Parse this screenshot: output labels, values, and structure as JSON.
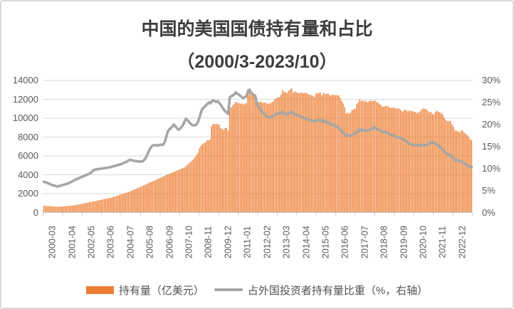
{
  "title": {
    "line1": "中国的美国国债持有量和占比",
    "line2": "（2000/3-2023/10）"
  },
  "legend": {
    "holdings_label": "持有量（亿美元）",
    "share_label": "占外国投资者持有量比重（%，右轴）"
  },
  "colors": {
    "bar": "#ED7D31",
    "line": "#A6A6A6",
    "gridline": "#D9D9D9",
    "axis_line": "#C6C6C6",
    "axis_text": "#595959",
    "title_text": "#3D3D3D"
  },
  "chart_data": {
    "type": "bar",
    "subtype": "combo-bar-line",
    "title": "中国的美国国债持有量和占比（2000/3-2023/10）",
    "x_first": "2000-03",
    "x_last": "2023-10",
    "x_tick_labels": [
      "2000-03",
      "2001-04",
      "2002-05",
      "2003-06",
      "2004-07",
      "2005-08",
      "2006-09",
      "2007-10",
      "2008-11",
      "2009-12",
      "2011-01",
      "2012-02",
      "2013-03",
      "2014-04",
      "2015-05",
      "2016-06",
      "2017-07",
      "2018-08",
      "2019-09",
      "2020-10",
      "2021-11",
      "2022-12"
    ],
    "left_axis": {
      "min": 0,
      "max": 14000,
      "step": 2000,
      "tick_labels": [
        "0",
        "2000",
        "4000",
        "6000",
        "8000",
        "10000",
        "12000",
        "14000"
      ]
    },
    "right_axis": {
      "min": 0,
      "max": 30,
      "step": 5,
      "tick_labels": [
        "0%",
        "5%",
        "10%",
        "15%",
        "20%",
        "25%",
        "30%"
      ]
    },
    "grid": true,
    "legend_position": "bottom",
    "series": [
      {
        "name": "持有量（亿美元）",
        "type": "bar",
        "axis": "left",
        "color": "#ED7D31",
        "values": [
          714,
          705,
          695,
          686,
          676,
          666,
          655,
          643,
          625,
          603,
          615,
          630,
          645,
          660,
          675,
          690,
          705,
          720,
          735,
          750,
          768,
          786,
          819,
          852,
          885,
          918,
          951,
          984,
          1017,
          1050,
          1083,
          1116,
          1150,
          1184,
          1218,
          1252,
          1286,
          1320,
          1354,
          1388,
          1422,
          1456,
          1490,
          1524,
          1557,
          1590,
          1643,
          1696,
          1749,
          1802,
          1855,
          1908,
          1961,
          2014,
          2067,
          2120,
          2175,
          2230,
          2302,
          2374,
          2446,
          2518,
          2590,
          2662,
          2734,
          2806,
          2878,
          2950,
          3025,
          3100,
          3172,
          3244,
          3316,
          3388,
          3460,
          3532,
          3604,
          3676,
          3748,
          3820,
          3895,
          3970,
          4037,
          4104,
          4171,
          4238,
          4305,
          4372,
          4439,
          4506,
          4573,
          4640,
          4708,
          4776,
          4900,
          5050,
          5200,
          5350,
          5500,
          5650,
          5870,
          6100,
          6350,
          6800,
          7100,
          7274,
          7396,
          7440,
          7680,
          7640,
          7760,
          9160,
          9400,
          9370,
          9380,
          9380,
          9300,
          8948,
          8890,
          8770,
          8950,
          9000,
          8677,
          11121,
          11150,
          11370,
          11510,
          11750,
          11640,
          11601,
          11550,
          11540,
          11450,
          11530,
          11600,
          13070,
          13149,
          12780,
          12700,
          12560,
          12550,
          11519,
          11660,
          11790,
          11700,
          11640,
          11640,
          11640,
          11500,
          11550,
          11560,
          11700,
          11830,
          12028,
          12140,
          12230,
          12230,
          12490,
          12970,
          12760,
          12770,
          12680,
          12940,
          13050,
          13167,
          12700,
          12840,
          12730,
          12720,
          12630,
          12710,
          12680,
          12650,
          12700,
          12660,
          12530,
          12500,
          12443,
          12390,
          12240,
          12610,
          12630,
          12700,
          12712,
          12410,
          12710,
          12580,
          12550,
          12650,
          12461,
          12380,
          12520,
          12450,
          12430,
          12440,
          12410,
          12190,
          11850,
          11570,
          11160,
          10490,
          10584,
          10510,
          10600,
          10880,
          10920,
          11020,
          11470,
          11660,
          12000,
          11810,
          11890,
          11770,
          11849,
          11680,
          11770,
          11880,
          11820,
          11830,
          11910,
          11710,
          11650,
          11510,
          11390,
          11210,
          11235,
          11270,
          11310,
          11210,
          11130,
          11100,
          11125,
          11100,
          11030,
          11020,
          11017,
          10890,
          10699,
          10790,
          10923,
          10816,
          10728,
          10843,
          10744,
          10734,
          10680,
          10618,
          10540,
          10630,
          10720,
          10950,
          11040,
          11000,
          10960,
          10780,
          10620,
          10680,
          10470,
          10380,
          10650,
          10810,
          10690,
          10600,
          10550,
          10390,
          10030,
          9810,
          9680,
          9700,
          9720,
          9330,
          9100,
          8700,
          8671,
          8594,
          8488,
          8693,
          8689,
          8467,
          8354,
          8218,
          8054,
          7781,
          7696
        ]
      },
      {
        "name": "占外国投资者持有量比重（%，右轴）",
        "type": "line",
        "axis": "right",
        "color": "#A6A6A6",
        "values": [
          7.0,
          6.9,
          6.8,
          6.6,
          6.5,
          6.3,
          6.2,
          6.1,
          6.0,
          5.9,
          6.0,
          6.1,
          6.2,
          6.3,
          6.4,
          6.5,
          6.6,
          6.8,
          6.9,
          7.1,
          7.3,
          7.5,
          7.6,
          7.8,
          7.9,
          8.1,
          8.2,
          8.4,
          8.5,
          8.7,
          8.8,
          9.0,
          9.3,
          9.7,
          9.7,
          9.8,
          9.9,
          9.9,
          10.0,
          10.0,
          10.1,
          10.1,
          10.2,
          10.2,
          10.3,
          10.4,
          10.5,
          10.6,
          10.7,
          10.8,
          10.9,
          11.0,
          11.1,
          11.3,
          11.4,
          11.6,
          11.8,
          12.0,
          11.9,
          11.8,
          11.7,
          11.7,
          11.6,
          11.6,
          11.6,
          11.6,
          11.8,
          12.2,
          12.8,
          13.6,
          14.3,
          14.9,
          15.2,
          15.3,
          15.3,
          15.2,
          15.3,
          15.4,
          15.4,
          15.4,
          16.0,
          17.2,
          18.4,
          18.9,
          19.2,
          19.5,
          20.0,
          19.6,
          19.2,
          18.8,
          19.0,
          19.4,
          19.8,
          20.6,
          21.3,
          21.0,
          20.6,
          20.2,
          19.9,
          19.8,
          19.8,
          20.0,
          20.6,
          21.6,
          22.8,
          23.6,
          23.9,
          24.2,
          24.6,
          25.0,
          24.8,
          25.2,
          25.5,
          25.3,
          25.1,
          25.3,
          24.9,
          24.5,
          24.0,
          23.4,
          23.0,
          22.7,
          22.4,
          26.2,
          26.4,
          26.6,
          26.8,
          27.3,
          27.0,
          26.8,
          26.5,
          26.2,
          26.0,
          26.2,
          26.4,
          27.5,
          27.9,
          27.3,
          27.0,
          26.6,
          26.4,
          24.5,
          24.0,
          23.5,
          23.0,
          22.6,
          22.3,
          22.0,
          21.7,
          21.6,
          21.6,
          21.8,
          22.0,
          22.3,
          22.4,
          22.5,
          22.4,
          22.6,
          22.9,
          22.5,
          22.4,
          22.2,
          22.5,
          22.7,
          23.0,
          22.4,
          22.4,
          22.2,
          22.1,
          21.9,
          21.8,
          21.6,
          21.5,
          21.4,
          21.3,
          21.1,
          21.0,
          20.9,
          20.8,
          20.6,
          20.9,
          20.9,
          21.0,
          21.0,
          20.6,
          20.9,
          20.7,
          20.5,
          20.5,
          20.3,
          20.0,
          20.0,
          19.8,
          19.6,
          19.5,
          19.3,
          18.9,
          18.5,
          18.1,
          17.8,
          17.4,
          17.6,
          17.4,
          17.5,
          17.7,
          17.8,
          17.9,
          18.3,
          18.5,
          18.9,
          18.7,
          18.8,
          18.6,
          18.7,
          18.5,
          18.7,
          18.9,
          19.0,
          19.2,
          19.3,
          19.1,
          18.9,
          18.7,
          18.5,
          18.3,
          18.3,
          18.3,
          18.2,
          18.0,
          17.8,
          17.6,
          17.5,
          17.4,
          17.2,
          17.1,
          17.0,
          16.9,
          16.9,
          16.6,
          16.4,
          16.1,
          15.8,
          15.6,
          15.5,
          15.4,
          15.3,
          15.2,
          15.2,
          15.3,
          15.4,
          15.4,
          15.3,
          15.2,
          15.3,
          15.4,
          15.6,
          15.9,
          16.0,
          15.9,
          15.6,
          15.4,
          15.2,
          14.9,
          14.6,
          14.2,
          13.8,
          13.5,
          13.2,
          13.1,
          13.0,
          12.6,
          12.3,
          11.9,
          11.9,
          11.8,
          11.6,
          11.7,
          11.5,
          11.2,
          11.0,
          10.8,
          10.6,
          10.3,
          10.3
        ]
      }
    ]
  }
}
